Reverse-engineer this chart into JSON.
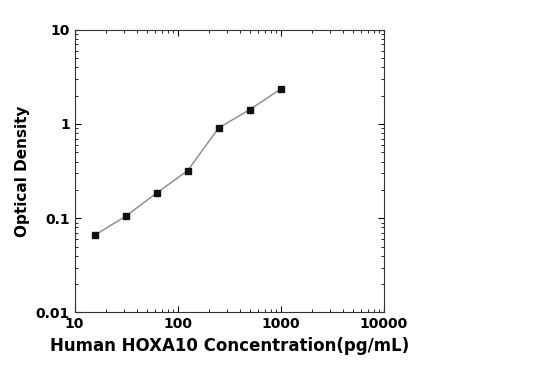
{
  "x_values": [
    15.625,
    31.25,
    62.5,
    125,
    250,
    500,
    1000
  ],
  "y_values": [
    0.066,
    0.105,
    0.185,
    0.32,
    0.91,
    1.42,
    2.35
  ],
  "xlabel": "Human HOXA10 Concentration(pg/mL)",
  "ylabel": "Optical Density",
  "xlim": [
    10,
    10000
  ],
  "ylim": [
    0.01,
    10
  ],
  "xticks": [
    10,
    100,
    1000,
    10000
  ],
  "yticks": [
    0.01,
    0.1,
    1,
    10
  ],
  "line_color": "#888888",
  "marker": "s",
  "marker_color": "#111111",
  "marker_size": 5,
  "line_width": 1.0,
  "background_color": "#ffffff",
  "xlabel_fontsize": 12,
  "ylabel_fontsize": 11,
  "tick_fontsize": 10,
  "xlabel_fontweight": "bold",
  "ylabel_fontweight": "bold",
  "tick_fontweight": "bold"
}
